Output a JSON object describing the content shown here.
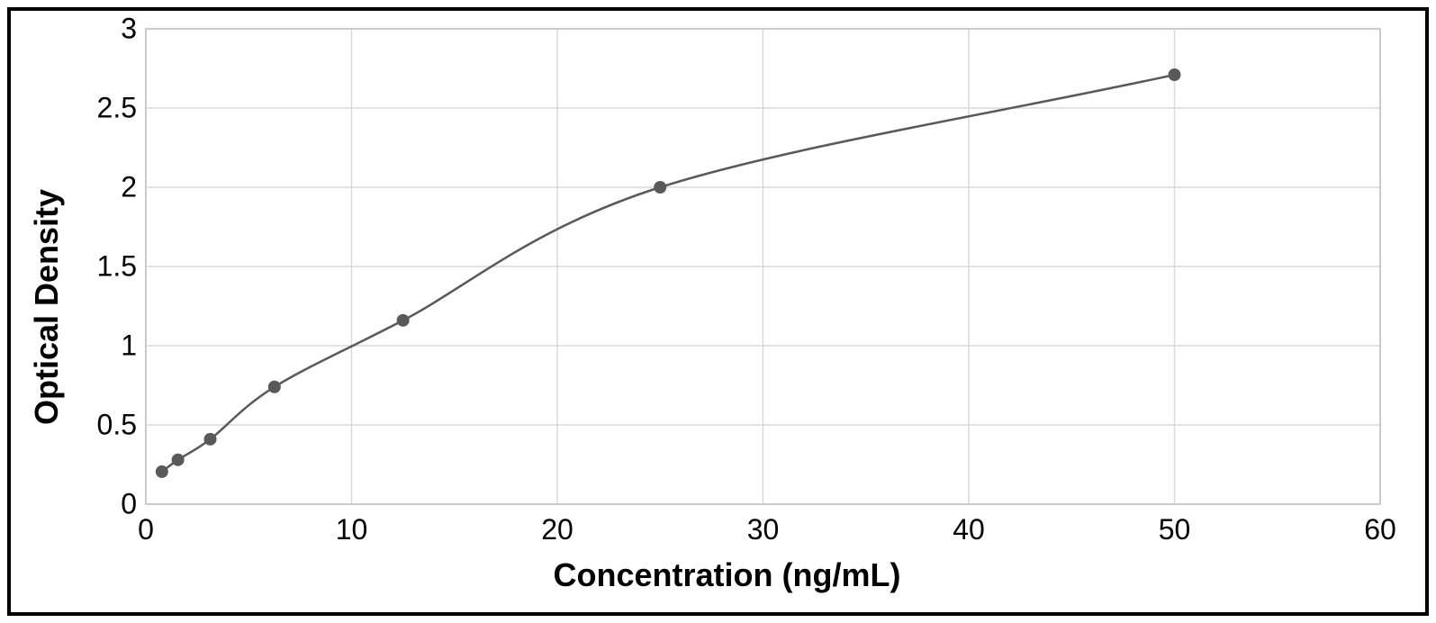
{
  "chart": {
    "type": "scatter-line",
    "x_axis": {
      "label": "Concentration (ng/mL)",
      "min": 0,
      "max": 60,
      "ticks": [
        0,
        10,
        20,
        30,
        40,
        50,
        60
      ],
      "label_fontsize": 36,
      "tick_fontsize": 32,
      "label_fontweight": "bold",
      "scale": "linear"
    },
    "y_axis": {
      "label": "Optical Density",
      "min": 0,
      "max": 3,
      "ticks": [
        0,
        0.5,
        1,
        1.5,
        2,
        2.5,
        3
      ],
      "label_fontsize": 36,
      "tick_fontsize": 32,
      "label_fontweight": "bold",
      "scale": "linear"
    },
    "data_points": [
      {
        "x": 0.78,
        "y": 0.205
      },
      {
        "x": 1.56,
        "y": 0.28
      },
      {
        "x": 3.13,
        "y": 0.41
      },
      {
        "x": 6.25,
        "y": 0.74
      },
      {
        "x": 12.5,
        "y": 1.16
      },
      {
        "x": 25,
        "y": 2.0
      },
      {
        "x": 50,
        "y": 2.71
      }
    ],
    "curve": {
      "type": "smooth-saturating",
      "color": "#595959",
      "line_width": 2.5
    },
    "marker": {
      "shape": "circle",
      "fill_color": "#595959",
      "radius": 7
    },
    "grid": {
      "color": "#d9d9d9",
      "line_width": 1.5,
      "show_vertical": true,
      "show_horizontal": true
    },
    "plot_border": {
      "color": "#bfbfbf",
      "line_width": 1.5
    },
    "background_color": "#ffffff",
    "outer_frame_color": "#000000",
    "outer_frame_width": 4
  }
}
